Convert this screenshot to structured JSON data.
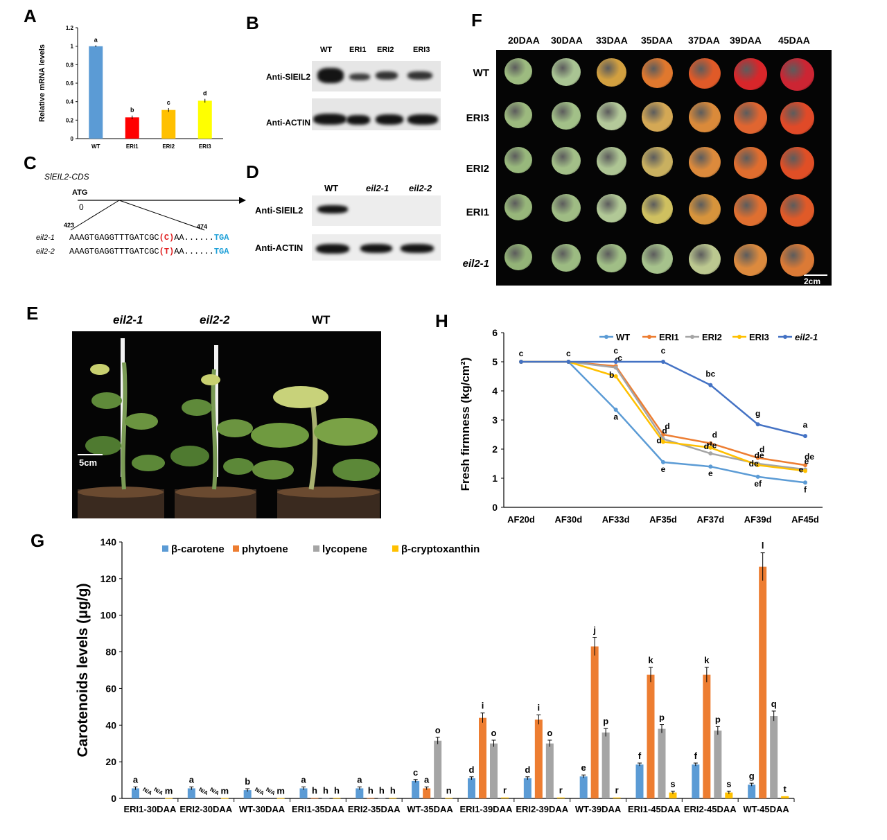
{
  "panels": {
    "A": "A",
    "B": "B",
    "C": "C",
    "D": "D",
    "E": "E",
    "F": "F",
    "G": "G",
    "H": "H"
  },
  "panelB": {
    "cols": [
      "WT",
      "ERI1",
      "ERI2",
      "ERI3"
    ],
    "rows": [
      "Anti-SlEIL2",
      "Anti-ACTIN"
    ]
  },
  "panelD": {
    "cols": [
      "WT",
      "eil2-1",
      "eil2-2"
    ],
    "rows": [
      "Anti-SlEIL2",
      "Anti-ACTIN"
    ]
  },
  "panelC": {
    "title": "SlEIL2-CDS",
    "atg": "ATG",
    "zero": "0",
    "n423": "423",
    "n474": "474",
    "seqs": [
      {
        "name": "eil2-1",
        "pre": "AAAGTGAGGTTTGATCGC",
        "mut": "(C)",
        "post": "AA......",
        "stop": "TGA"
      },
      {
        "name": "eil2-2",
        "pre": "AAAGTGAGGTTTGATCGC",
        "mut": "(T)",
        "post": "AA......",
        "stop": "TGA"
      }
    ]
  },
  "panelE": {
    "titles": [
      "eil2-1",
      "eil2-2",
      "WT"
    ],
    "scale": "5cm"
  },
  "panelF": {
    "cols": [
      "20DAA",
      "30DAA",
      "33DAA",
      "35DAA",
      "37DAA",
      "39DAA",
      "45DAA"
    ],
    "rows": [
      "WT",
      "ERI3",
      "ERI2",
      "ERI1",
      "eil2-1"
    ],
    "scale": "2cm",
    "fruit_colors": [
      [
        "#9dbb80",
        "#a9c493",
        "#d2a040",
        "#e0782e",
        "#e05a28",
        "#d8262a",
        "#cc2533"
      ],
      [
        "#9cb97e",
        "#a2c088",
        "#b4c99a",
        "#d4a855",
        "#da8a3a",
        "#e06530",
        "#e04a28"
      ],
      [
        "#98b87c",
        "#a3bf88",
        "#aec594",
        "#c9b060",
        "#dc8a3c",
        "#e06d2e",
        "#e04f26"
      ],
      [
        "#97b67a",
        "#9fbc84",
        "#b1c896",
        "#cfc060",
        "#d7943c",
        "#df6f30",
        "#e05a28"
      ],
      [
        "#93b377",
        "#9cbb82",
        "#a0be86",
        "#a6c28c",
        "#bcc890",
        "#dc8a3e",
        "#db7a36"
      ]
    ]
  },
  "chart_data": [
    {
      "panel": "A",
      "type": "bar",
      "categories": [
        "WT",
        "ERI1",
        "ERI2",
        "ERI3"
      ],
      "values": [
        1.0,
        0.23,
        0.31,
        0.41
      ],
      "errors": [
        0.01,
        0.02,
        0.02,
        0.02
      ],
      "letters": [
        "a",
        "b",
        "c",
        "d"
      ],
      "colors": [
        "#5b9bd5",
        "#ff0000",
        "#ffc000",
        "#ffff00"
      ],
      "ylabel": "Relative mRNA levels",
      "ylim": [
        0,
        1.2
      ],
      "yticks": [
        "0",
        "0.2",
        "0.4",
        "0.6",
        "0.8",
        "1",
        "1.2"
      ]
    },
    {
      "panel": "H",
      "type": "line",
      "categories": [
        "AF20d",
        "AF30d",
        "AF33d",
        "AF35d",
        "AF37d",
        "AF39d",
        "AF45d"
      ],
      "ylabel": "Fresh firmness (kg/cm²)",
      "ylim": [
        0,
        6
      ],
      "yticks": [
        "0",
        "1",
        "2",
        "3",
        "4",
        "5",
        "6"
      ],
      "series": [
        {
          "name": "WT",
          "color": "#5b9bd5",
          "values": [
            5,
            5,
            3.35,
            1.55,
            1.4,
            1.05,
            0.85
          ],
          "letters": [
            "c",
            "c",
            "a",
            "e",
            "e",
            "ef",
            "f"
          ]
        },
        {
          "name": "ERI1",
          "color": "#ed7d31",
          "values": [
            5,
            5,
            4.85,
            2.5,
            2.2,
            1.7,
            1.45
          ],
          "letters": [
            "",
            "",
            "c",
            "d",
            "d",
            "d",
            "de"
          ]
        },
        {
          "name": "ERI2",
          "color": "#a5a5a5",
          "values": [
            5,
            5,
            4.8,
            2.35,
            1.85,
            1.5,
            1.3
          ],
          "letters": [
            "",
            "",
            "c",
            "d",
            "de",
            "de",
            "e"
          ]
        },
        {
          "name": "ERI3",
          "color": "#ffc000",
          "values": [
            5,
            5,
            4.5,
            2.25,
            2.05,
            1.45,
            1.25
          ],
          "letters": [
            "",
            "",
            "b",
            "d",
            "d",
            "de",
            "e"
          ]
        },
        {
          "name": "eil2-1",
          "color": "#4472c4",
          "values": [
            5,
            5,
            5,
            5,
            4.2,
            2.85,
            2.45
          ],
          "letters": [
            "",
            "",
            "c",
            "c",
            "bc",
            "g",
            "a"
          ]
        }
      ]
    },
    {
      "panel": "G",
      "type": "bar",
      "categories": [
        "ERI1-30DAA",
        "ERI2-30DAA",
        "WT-30DAA",
        "ERI1-35DAA",
        "ERI2-35DAA",
        "WT-35DAA",
        "ERI1-39DAA",
        "ERI2-39DAA",
        "WT-39DAA",
        "ERI1-45DAA",
        "ERI2-45DAA",
        "WT-45DAA"
      ],
      "ylabel": "Carotenoids levels (μg/g)",
      "ylim": [
        0,
        140
      ],
      "yticks": [
        "0",
        "20",
        "40",
        "60",
        "80",
        "100",
        "120",
        "140"
      ],
      "series": [
        {
          "name": "β-carotene",
          "color": "#5b9bd5",
          "values": [
            5.5,
            5.5,
            4.5,
            5.5,
            5.5,
            9.5,
            11,
            11,
            12,
            18.5,
            18.5,
            7.5
          ],
          "letters": [
            "a",
            "a",
            "b",
            "a",
            "a",
            "c",
            "d",
            "d",
            "e",
            "f",
            "f",
            "g"
          ]
        },
        {
          "name": "phytoene",
          "color": "#ed7d31",
          "values": [
            null,
            null,
            null,
            0.3,
            0.3,
            5.5,
            44,
            43,
            83,
            67.5,
            67.5,
            126.5
          ],
          "letters": [
            "N/A",
            "N/A",
            "N/A",
            "h",
            "h",
            "a",
            "i",
            "i",
            "j",
            "k",
            "k",
            "l"
          ]
        },
        {
          "name": "lycopene",
          "color": "#a5a5a5",
          "values": [
            null,
            null,
            null,
            0.3,
            0.3,
            31.5,
            30,
            30,
            36,
            38,
            37,
            45
          ],
          "letters": [
            "N/A",
            "N/A",
            "N/A",
            "h",
            "h",
            "o",
            "o",
            "o",
            "p",
            "p",
            "p",
            "q"
          ]
        },
        {
          "name": "β-cryptoxanthin",
          "color": "#ffc000",
          "values": [
            0.2,
            0.2,
            0.2,
            0.3,
            0.3,
            0.3,
            0.5,
            0.5,
            0.5,
            3.2,
            3.2,
            1.2
          ],
          "letters": [
            "m",
            "m",
            "m",
            "h",
            "h",
            "n",
            "r",
            "r",
            "r",
            "s",
            "s",
            "t"
          ]
        }
      ]
    }
  ]
}
